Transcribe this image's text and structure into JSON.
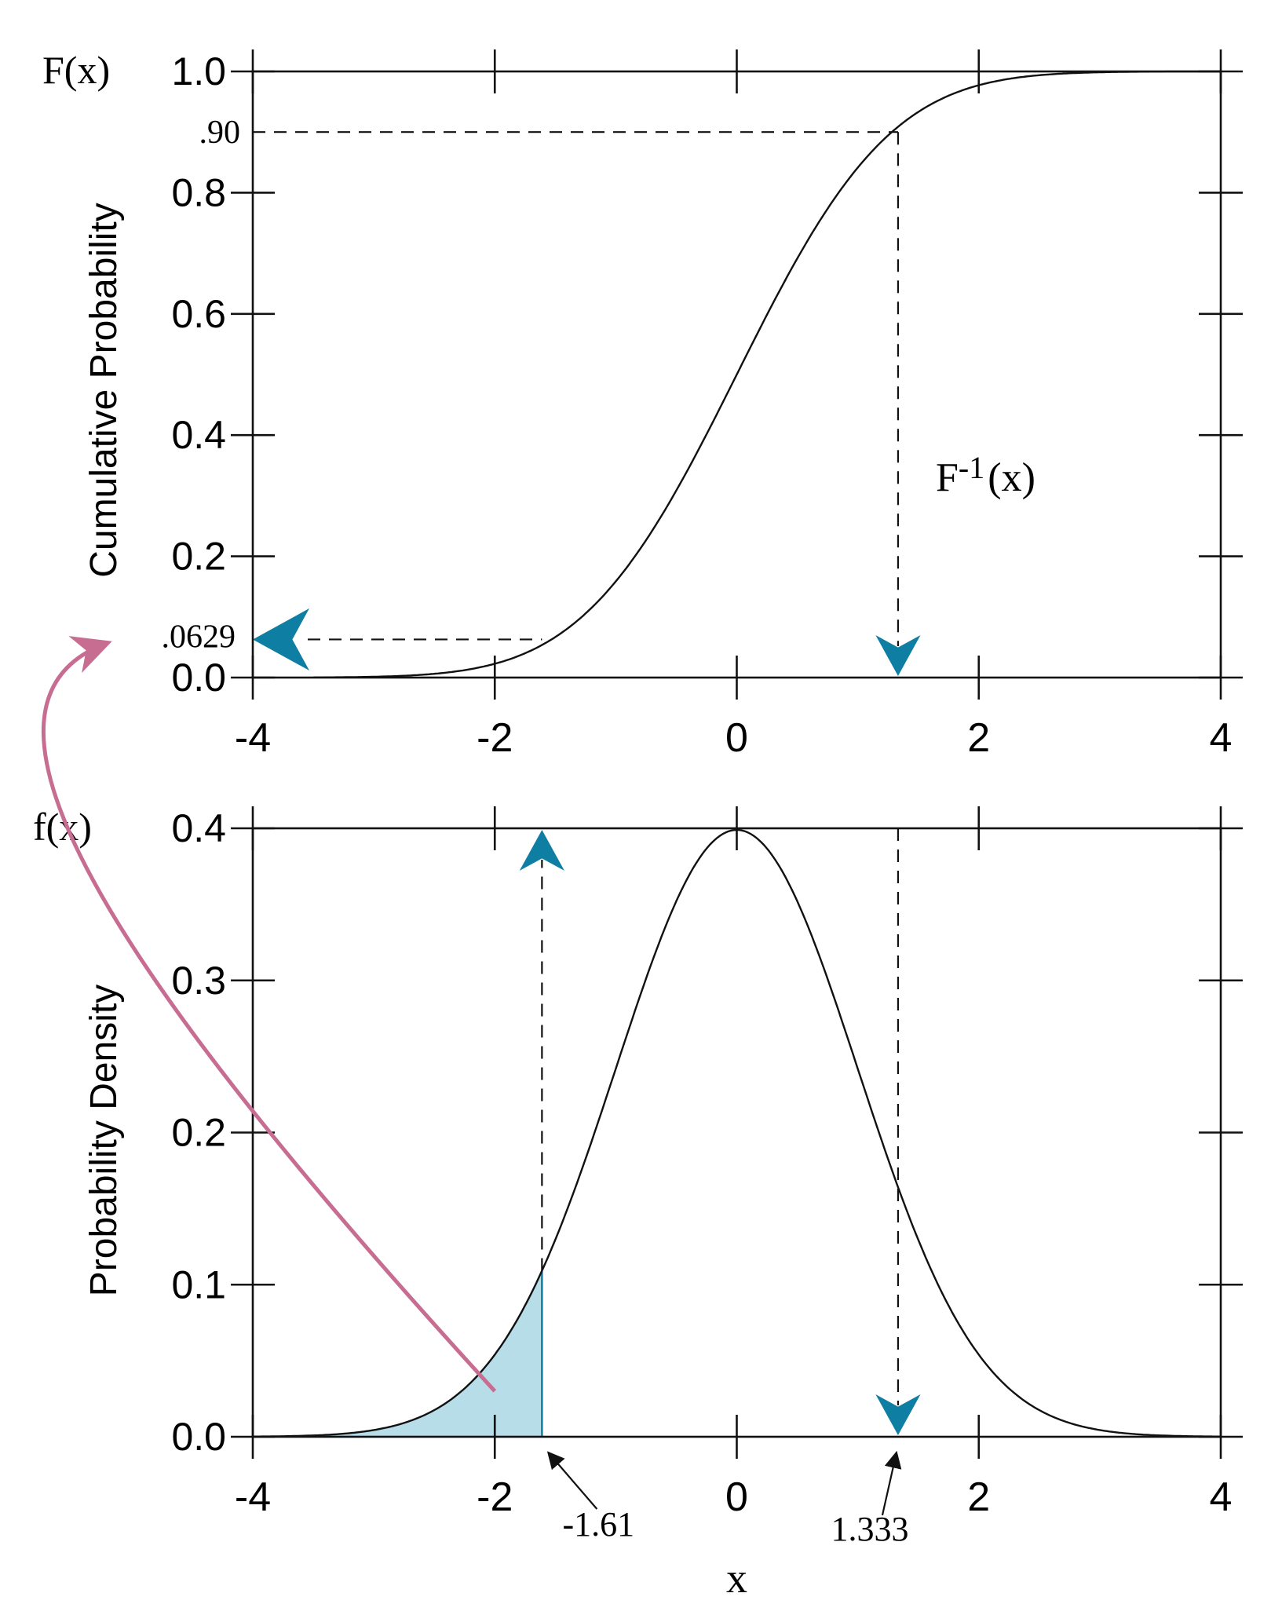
{
  "chart_data": [
    {
      "type": "line",
      "function": "normal-cdf",
      "mean": 0,
      "sd": 1,
      "corner_label": "F(x)",
      "ylabel": "Cumulative Probability",
      "xlim": [
        -4,
        4
      ],
      "ylim": [
        0,
        1.0
      ],
      "x_ticks": [
        -4,
        -2,
        0,
        2,
        4
      ],
      "x_tick_labels": [
        "-4",
        "-2",
        "0",
        "2",
        "4"
      ],
      "y_ticks": [
        0,
        0.2,
        0.4,
        0.6,
        0.8,
        1.0
      ],
      "y_tick_labels": [
        "0.0",
        "0.2",
        "0.4",
        "0.6",
        "0.8",
        "1.0"
      ],
      "grid": false,
      "annotations": {
        "p90_label": ".90",
        "p90_value": 0.9,
        "p0629_label": ".0629",
        "p0629_value": 0.0629,
        "inverse_label": {
          "base": "F",
          "sup": "-1",
          "arg": "(x)"
        }
      }
    },
    {
      "type": "area",
      "function": "normal-pdf",
      "mean": 0,
      "sd": 1,
      "corner_label": "f(x)",
      "ylabel": "Probability Density",
      "xlabel": "x",
      "xlim": [
        -4,
        4
      ],
      "ylim": [
        0,
        0.4
      ],
      "x_ticks": [
        -4,
        -2,
        0,
        2,
        4
      ],
      "x_tick_labels": [
        "-4",
        "-2",
        "0",
        "2",
        "4"
      ],
      "y_ticks": [
        0,
        0.1,
        0.2,
        0.3,
        0.4
      ],
      "y_tick_labels": [
        "0.0",
        "0.1",
        "0.2",
        "0.3",
        "0.4"
      ],
      "grid": false,
      "shaded_region": {
        "from": -4,
        "to": -1.61
      },
      "annotations": {
        "lower_x_label": "-1.61",
        "lower_x_value": -1.61,
        "upper_x_label": "1.333",
        "upper_x_value": 1.333
      }
    }
  ],
  "colors": {
    "axis": "#111111",
    "curve": "#111111",
    "arrow": "#0f7ea3",
    "shade": "#b7dde8",
    "curved_arrow": "#c86d92"
  }
}
